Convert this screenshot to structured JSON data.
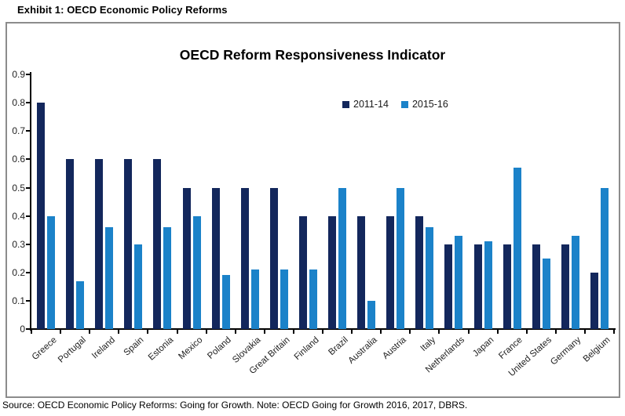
{
  "page": {
    "exhibit_title": "Exhibit 1: OECD Economic Policy Reforms",
    "source_note": "Source: OECD Economic Policy Reforms: Going for Growth. Note: OECD Going for Growth 2016, 2017, DBRS."
  },
  "chart_data": {
    "type": "bar",
    "title": "OECD Reform Responsiveness Indicator",
    "categories": [
      "Greece",
      "Portugal",
      "Ireland",
      "Spain",
      "Estonia",
      "Mexico",
      "Poland",
      "Slovakia",
      "Great Britain",
      "Finland",
      "Brazil",
      "Australia",
      "Austria",
      "Italy",
      "Netherlands",
      "Japan",
      "France",
      "United States",
      "Germany",
      "Belgium"
    ],
    "series": [
      {
        "name": "2011-14",
        "color": "#13275C",
        "values": [
          0.8,
          0.6,
          0.6,
          0.6,
          0.6,
          0.5,
          0.5,
          0.5,
          0.5,
          0.4,
          0.4,
          0.4,
          0.4,
          0.4,
          0.3,
          0.3,
          0.3,
          0.3,
          0.3,
          0.2
        ]
      },
      {
        "name": "2015-16",
        "color": "#1B82C9",
        "values": [
          0.4,
          0.17,
          0.36,
          0.3,
          0.36,
          0.4,
          0.19,
          0.21,
          0.21,
          0.21,
          0.5,
          0.1,
          0.5,
          0.36,
          0.33,
          0.31,
          0.57,
          0.25,
          0.33,
          0.5
        ]
      }
    ],
    "xlabel": "",
    "ylabel": "",
    "ylim": [
      0,
      0.9
    ],
    "ytick_labels": [
      "0",
      "0.1",
      "0.2",
      "0.3",
      "0.4",
      "0.5",
      "0.6",
      "0.7",
      "0.8",
      "0.9"
    ],
    "grid": false,
    "legend_position": "top-center",
    "x_label_rotation_deg": -42,
    "axis_color": "#000000",
    "frame_color": "#8c8c8c"
  }
}
